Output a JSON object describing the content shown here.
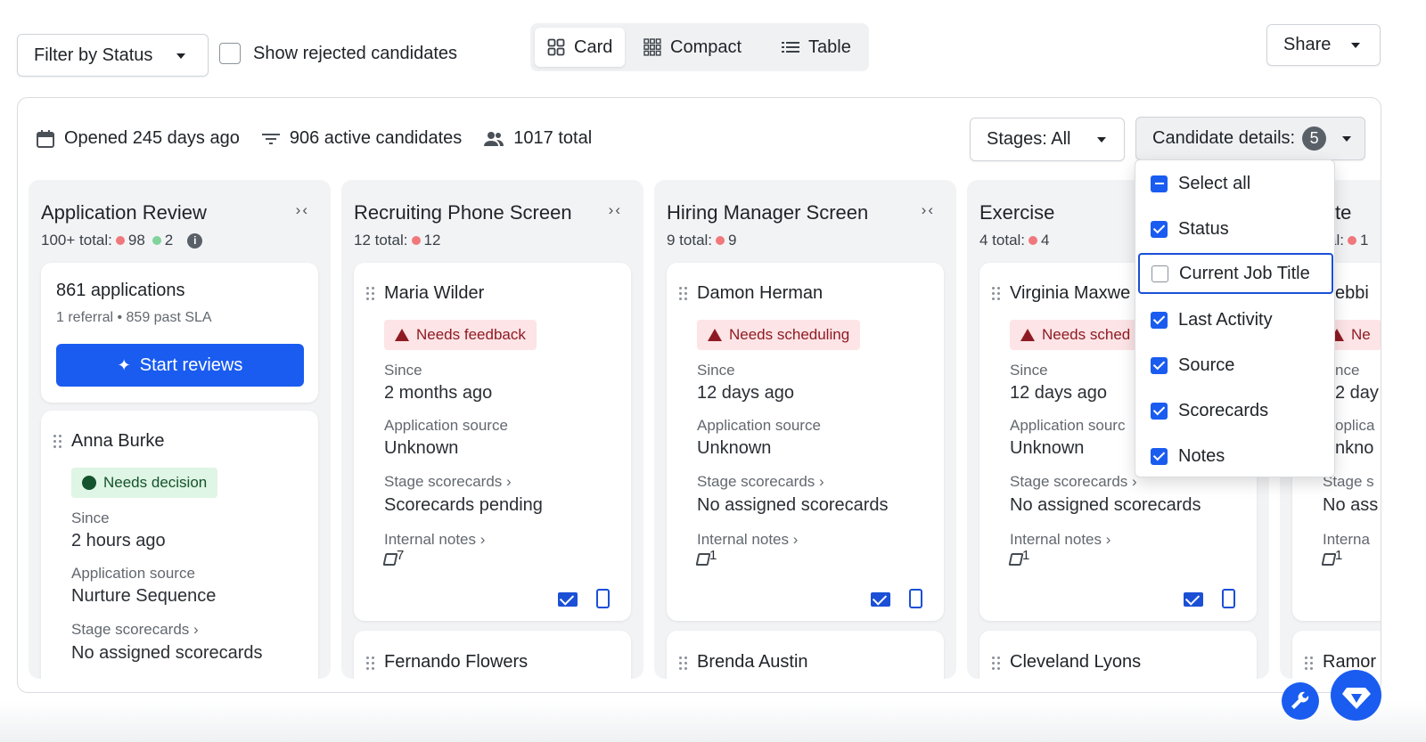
{
  "toolbar": {
    "filter_label": "Filter by Status",
    "show_rejected_label": "Show rejected candidates",
    "view_options": [
      "Card",
      "Compact",
      "Table"
    ],
    "active_view": "Card",
    "share_label": "Share"
  },
  "summary": {
    "opened": "Opened 245 days ago",
    "active": "906 active candidates",
    "total": "1017 total",
    "stages_label": "Stages: All",
    "details_label": "Candidate details:",
    "details_count": "5"
  },
  "details_menu": {
    "items": [
      {
        "label": "Select all",
        "state": "mixed"
      },
      {
        "label": "Status",
        "state": "checked"
      },
      {
        "label": "Current Job Title",
        "state": "unchecked"
      },
      {
        "label": "Last Activity",
        "state": "checked"
      },
      {
        "label": "Source",
        "state": "checked"
      },
      {
        "label": "Scorecards",
        "state": "checked"
      },
      {
        "label": "Notes",
        "state": "checked"
      }
    ]
  },
  "columns": [
    {
      "title": "Application Review",
      "count_prefix": "100+ total:",
      "red_count": "98",
      "green_count": "2",
      "summary_card": {
        "applications": "861 applications",
        "sub": "1 referral • 859 past SLA",
        "button": "Start reviews"
      },
      "cards": [
        {
          "name": "Anna Burke",
          "badge": "Needs decision",
          "badge_type": "green",
          "since_label": "Since",
          "since": "2 hours ago",
          "source_label": "Application source",
          "source": "Nurture Sequence",
          "scorecards_label": "Stage scorecards ›",
          "scorecards": "No assigned scorecards"
        }
      ]
    },
    {
      "title": "Recruiting Phone Screen",
      "count_prefix": "12 total:",
      "red_count": "12",
      "cards": [
        {
          "name": "Maria Wilder",
          "badge": "Needs feedback",
          "badge_type": "red",
          "since_label": "Since",
          "since": "2 months ago",
          "source_label": "Application source",
          "source": "Unknown",
          "scorecards_label": "Stage scorecards ›",
          "scorecards": "Scorecards pending",
          "notes_label": "Internal notes ›",
          "notes_count": "7"
        },
        {
          "name": "Fernando Flowers"
        }
      ]
    },
    {
      "title": "Hiring Manager Screen",
      "count_prefix": "9 total:",
      "red_count": "9",
      "cards": [
        {
          "name": "Damon Herman",
          "badge": "Needs scheduling",
          "badge_type": "red",
          "since_label": "Since",
          "since": "12 days ago",
          "source_label": "Application source",
          "source": "Unknown",
          "scorecards_label": "Stage scorecards ›",
          "scorecards": "No assigned scorecards",
          "notes_label": "Internal notes ›",
          "notes_count": "1"
        },
        {
          "name": "Brenda Austin"
        }
      ]
    },
    {
      "title": "Exercise",
      "count_prefix": "4 total:",
      "red_count": "4",
      "cards": [
        {
          "name": "Virginia Maxwe",
          "badge": "Needs sched",
          "badge_type": "red",
          "since_label": "Since",
          "since": "12 days ago",
          "source_label": "Application sourc",
          "source": "Unknown",
          "scorecards_label": "Stage scorecards ›",
          "scorecards": "No assigned scorecards",
          "notes_label": "Internal notes ›",
          "notes_count": "1"
        },
        {
          "name": "Cleveland Lyons"
        }
      ]
    },
    {
      "title": "te",
      "count_prefix": "al:",
      "red_count": "1",
      "cards": [
        {
          "name": "ebbi",
          "badge": "Ne",
          "badge_type": "red",
          "since_label": "nce",
          "since": "2 day",
          "source_label": "oplica",
          "source": "nkno",
          "scorecards_label": "Stage s",
          "scorecards": "No ass",
          "notes_label": "Interna",
          "notes_count": "1"
        },
        {
          "name": "Ramor"
        }
      ]
    }
  ],
  "colors": {
    "accent": "#1a5cf0",
    "alert_bg": "#fde4e6",
    "alert_text": "#8e1b23",
    "success_bg": "#dff5e5",
    "success_text": "#14532d"
  }
}
